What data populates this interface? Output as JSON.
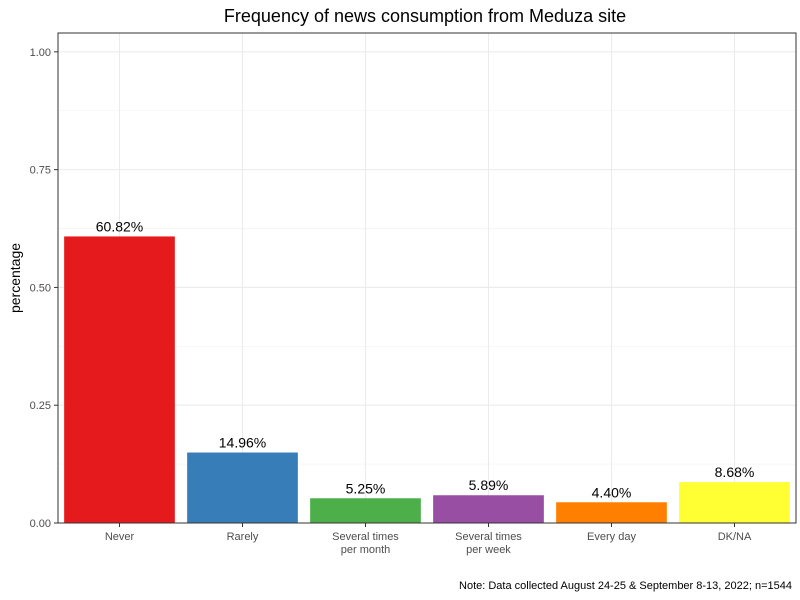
{
  "chart_data": {
    "type": "bar",
    "title": "Frequency of news consumption from Meduza site",
    "xlabel": "",
    "ylabel": "percentage",
    "ylim": [
      0,
      1.04
    ],
    "yticks": [
      "0.00",
      "0.25",
      "0.50",
      "0.75",
      "1.00"
    ],
    "ytick_values": [
      0,
      0.25,
      0.5,
      0.75,
      1.0
    ],
    "categories": [
      [
        "Never"
      ],
      [
        "Rarely"
      ],
      [
        "Several times",
        "per month"
      ],
      [
        "Several times",
        "per week"
      ],
      [
        "Every day"
      ],
      [
        "DK/NA"
      ]
    ],
    "values": [
      0.6082,
      0.1496,
      0.0525,
      0.0589,
      0.044,
      0.0868
    ],
    "data_labels": [
      "60.82%",
      "14.96%",
      "5.25%",
      "5.89%",
      "4.40%",
      "8.68%"
    ],
    "colors": [
      "#e41a1c",
      "#377eb8",
      "#4daf4a",
      "#984ea3",
      "#ff7f00",
      "#ffff33"
    ],
    "grid": true,
    "legend": "none",
    "note": "Note: Data collected August 24-25 & September 8-13, 2022; n=1544"
  }
}
